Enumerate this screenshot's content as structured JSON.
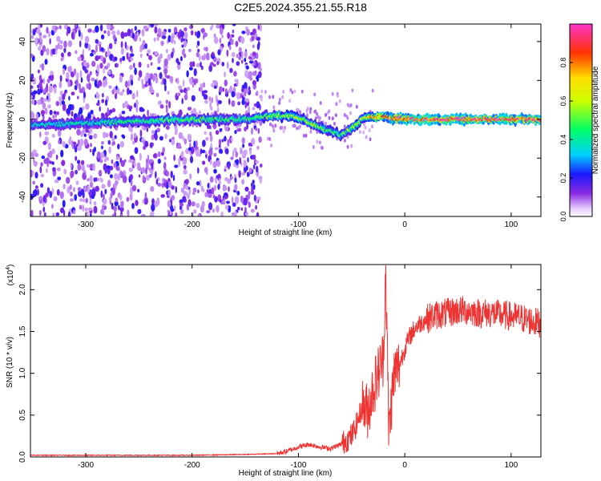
{
  "title": "C2E5.2024.355.21.55.R18",
  "chart_data": [
    {
      "type": "heatmap",
      "xlabel": "Height of straight line (km)",
      "ylabel": "Frequency (Hz)",
      "xlim": [
        -352,
        128
      ],
      "ylim": [
        -50,
        49
      ],
      "xticks": [
        -300,
        -200,
        -100,
        0,
        100
      ],
      "xtick_labels": [
        "-300",
        "-200",
        "-100",
        "0",
        "100"
      ],
      "yticks": [
        -40,
        -20,
        0,
        20,
        40
      ],
      "ytick_labels": [
        "-40",
        "-20",
        "0",
        "20",
        "40"
      ],
      "colorbar": {
        "label": "Normalized spectral amplitude",
        "range": [
          0,
          1
        ],
        "ticks": [
          0.0,
          0.2,
          0.4,
          0.6,
          0.8
        ],
        "tick_labels": [
          "0.0",
          "0.2",
          "0.4",
          "0.6",
          "0.8"
        ],
        "colormap": "rainbow (white/purple low → red/magenta high)"
      },
      "ridge": {
        "x": [
          -352,
          -300,
          -250,
          -200,
          -150,
          -120,
          -100,
          -85,
          -70,
          -60,
          -50,
          -40,
          -30,
          -20,
          0,
          50,
          128
        ],
        "frequency": [
          -3,
          -2,
          -1,
          0,
          0,
          2,
          1,
          -3,
          -6,
          -8,
          -5,
          0,
          1,
          1,
          0,
          0,
          0
        ],
        "amplitude": [
          0.35,
          0.4,
          0.45,
          0.5,
          0.45,
          0.55,
          0.6,
          0.55,
          0.5,
          0.5,
          0.55,
          0.6,
          0.75,
          0.85,
          0.9,
          0.92,
          0.9
        ]
      },
      "noise_floor_region": [
        -352,
        -135
      ]
    },
    {
      "type": "line",
      "xlabel": "Height of straight line (km)",
      "ylabel": "SNR (10 * v/v)",
      "y_multiplier_label": "(x10",
      "y_multiplier_exp": "4",
      "y_multiplier_close": ")",
      "xlim": [
        -352,
        128
      ],
      "ylim": [
        0,
        2.3
      ],
      "xticks": [
        -300,
        -200,
        -100,
        0,
        100
      ],
      "xtick_labels": [
        "-300",
        "-200",
        "-100",
        "0",
        "100"
      ],
      "yticks": [
        0.0,
        0.5,
        1.0,
        1.5,
        2.0
      ],
      "ytick_labels": [
        "0.0",
        "0.5",
        "1.0",
        "1.5",
        "2.0"
      ],
      "color": "#ee3333",
      "x": [
        -352,
        -300,
        -200,
        -150,
        -120,
        -110,
        -100,
        -90,
        -80,
        -70,
        -60,
        -50,
        -45,
        -40,
        -35,
        -30,
        -25,
        -20,
        -18,
        -15,
        -10,
        -5,
        0,
        5,
        10,
        20,
        30,
        40,
        50,
        60,
        70,
        80,
        90,
        100,
        110,
        120,
        128
      ],
      "y": [
        0.02,
        0.02,
        0.02,
        0.03,
        0.04,
        0.07,
        0.12,
        0.15,
        0.12,
        0.1,
        0.15,
        0.25,
        0.4,
        0.6,
        0.55,
        0.8,
        1.0,
        1.2,
        2.3,
        0.3,
        1.0,
        1.1,
        1.3,
        1.45,
        1.55,
        1.65,
        1.7,
        1.72,
        1.75,
        1.75,
        1.72,
        1.72,
        1.7,
        1.68,
        1.66,
        1.62,
        1.6
      ]
    }
  ]
}
